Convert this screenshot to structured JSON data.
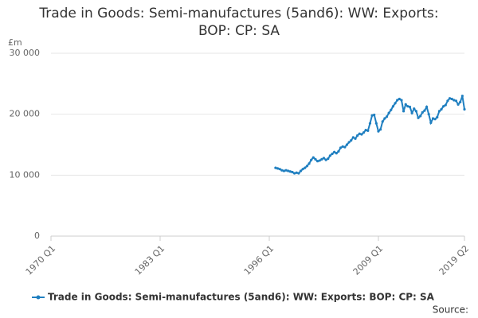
{
  "chart_data": {
    "type": "line",
    "title": "Trade in Goods: Semi-manufactures (5and6): WW: Exports: BOP: CP: SA",
    "y_label": "£m",
    "source": "Source:",
    "categories": [
      "1970 Q1",
      null,
      null,
      null,
      null,
      null,
      null,
      null,
      null,
      null,
      null,
      null,
      null,
      null,
      null,
      null,
      null,
      null,
      null,
      null,
      null,
      null,
      null,
      null,
      null,
      null,
      null,
      null,
      null,
      null,
      null,
      null,
      null,
      null,
      null,
      null,
      null,
      null,
      null,
      null,
      null,
      null,
      null,
      null,
      null,
      null,
      null,
      null,
      null,
      null,
      null,
      null,
      "1983 Q1",
      null,
      null,
      null,
      null,
      null,
      null,
      null,
      null,
      null,
      null,
      null,
      null,
      null,
      null,
      null,
      null,
      null,
      null,
      null,
      null,
      null,
      null,
      null,
      null,
      null,
      null,
      null,
      null,
      null,
      null,
      null,
      null,
      null,
      null,
      null,
      null,
      null,
      null,
      null,
      null,
      null,
      null,
      null,
      null,
      null,
      null,
      null,
      null,
      null,
      null,
      null,
      "1996 Q1",
      null,
      null,
      null,
      null,
      null,
      null,
      null,
      null,
      null,
      null,
      null,
      null,
      null,
      null,
      null,
      null,
      null,
      null,
      null,
      null,
      null,
      null,
      null,
      null,
      null,
      null,
      null,
      null,
      null,
      null,
      null,
      null,
      null,
      null,
      null,
      null,
      null,
      null,
      null,
      null,
      null,
      null,
      null,
      null,
      null,
      null,
      null,
      null,
      null,
      null,
      null,
      "2009 Q1",
      null,
      null,
      null,
      null,
      null,
      null,
      null,
      null,
      null,
      null,
      null,
      null,
      null,
      null,
      null,
      null,
      null,
      null,
      null,
      null,
      null,
      null,
      null,
      null,
      null,
      null,
      null,
      null,
      null,
      null,
      null,
      null,
      null,
      null,
      null,
      null,
      null,
      null,
      null,
      null,
      "2019 Q2"
    ],
    "series": [
      {
        "name": "Trade in Goods: Semi-manufactures (5and6): WW: Exports: BOP: CP: SA",
        "color": "#1f7fc0",
        "values": [
          null,
          null,
          null,
          null,
          null,
          null,
          null,
          null,
          null,
          null,
          null,
          null,
          null,
          null,
          null,
          null,
          null,
          null,
          null,
          null,
          null,
          null,
          null,
          null,
          null,
          null,
          null,
          null,
          null,
          null,
          null,
          null,
          null,
          null,
          null,
          null,
          null,
          null,
          null,
          null,
          null,
          null,
          null,
          null,
          null,
          null,
          null,
          null,
          null,
          null,
          null,
          null,
          null,
          null,
          null,
          null,
          null,
          null,
          null,
          null,
          null,
          null,
          null,
          null,
          null,
          null,
          null,
          null,
          null,
          null,
          null,
          null,
          null,
          null,
          null,
          null,
          null,
          null,
          null,
          null,
          null,
          null,
          null,
          null,
          null,
          null,
          null,
          null,
          null,
          null,
          null,
          null,
          null,
          null,
          null,
          null,
          null,
          null,
          null,
          null,
          null,
          null,
          null,
          null,
          null,
          null,
          null,
          11200,
          11100,
          11000,
          10800,
          10700,
          10800,
          10700,
          10600,
          10500,
          10300,
          10400,
          10300,
          10700,
          11000,
          11200,
          11500,
          11900,
          12500,
          12900,
          12600,
          12300,
          12400,
          12600,
          12800,
          12500,
          12700,
          13200,
          13500,
          13800,
          13600,
          13900,
          14500,
          14700,
          14600,
          15000,
          15400,
          15700,
          16200,
          16000,
          16500,
          16800,
          16700,
          17000,
          17400,
          17300,
          18500,
          19800,
          19900,
          18500,
          17200,
          17500,
          18800,
          19300,
          19600,
          20200,
          20700,
          21300,
          21800,
          22300,
          22500,
          22300,
          20500,
          21600,
          21300,
          21200,
          20200,
          20900,
          20500,
          19400,
          19700,
          20300,
          20600,
          21200,
          20000,
          18600,
          19300,
          19200,
          19500,
          20500,
          20800,
          21300,
          21500,
          22200,
          22600,
          22500,
          22300,
          22200,
          21600,
          22000,
          23000,
          20800
        ]
      }
    ],
    "ylim": [
      0,
      30000
    ],
    "yticks": [
      0,
      {
        "value": 10000,
        "label": "10 000"
      },
      {
        "value": 20000,
        "label": "20 000"
      },
      {
        "value": 30000,
        "label": "30 000"
      }
    ],
    "grid": true
  }
}
